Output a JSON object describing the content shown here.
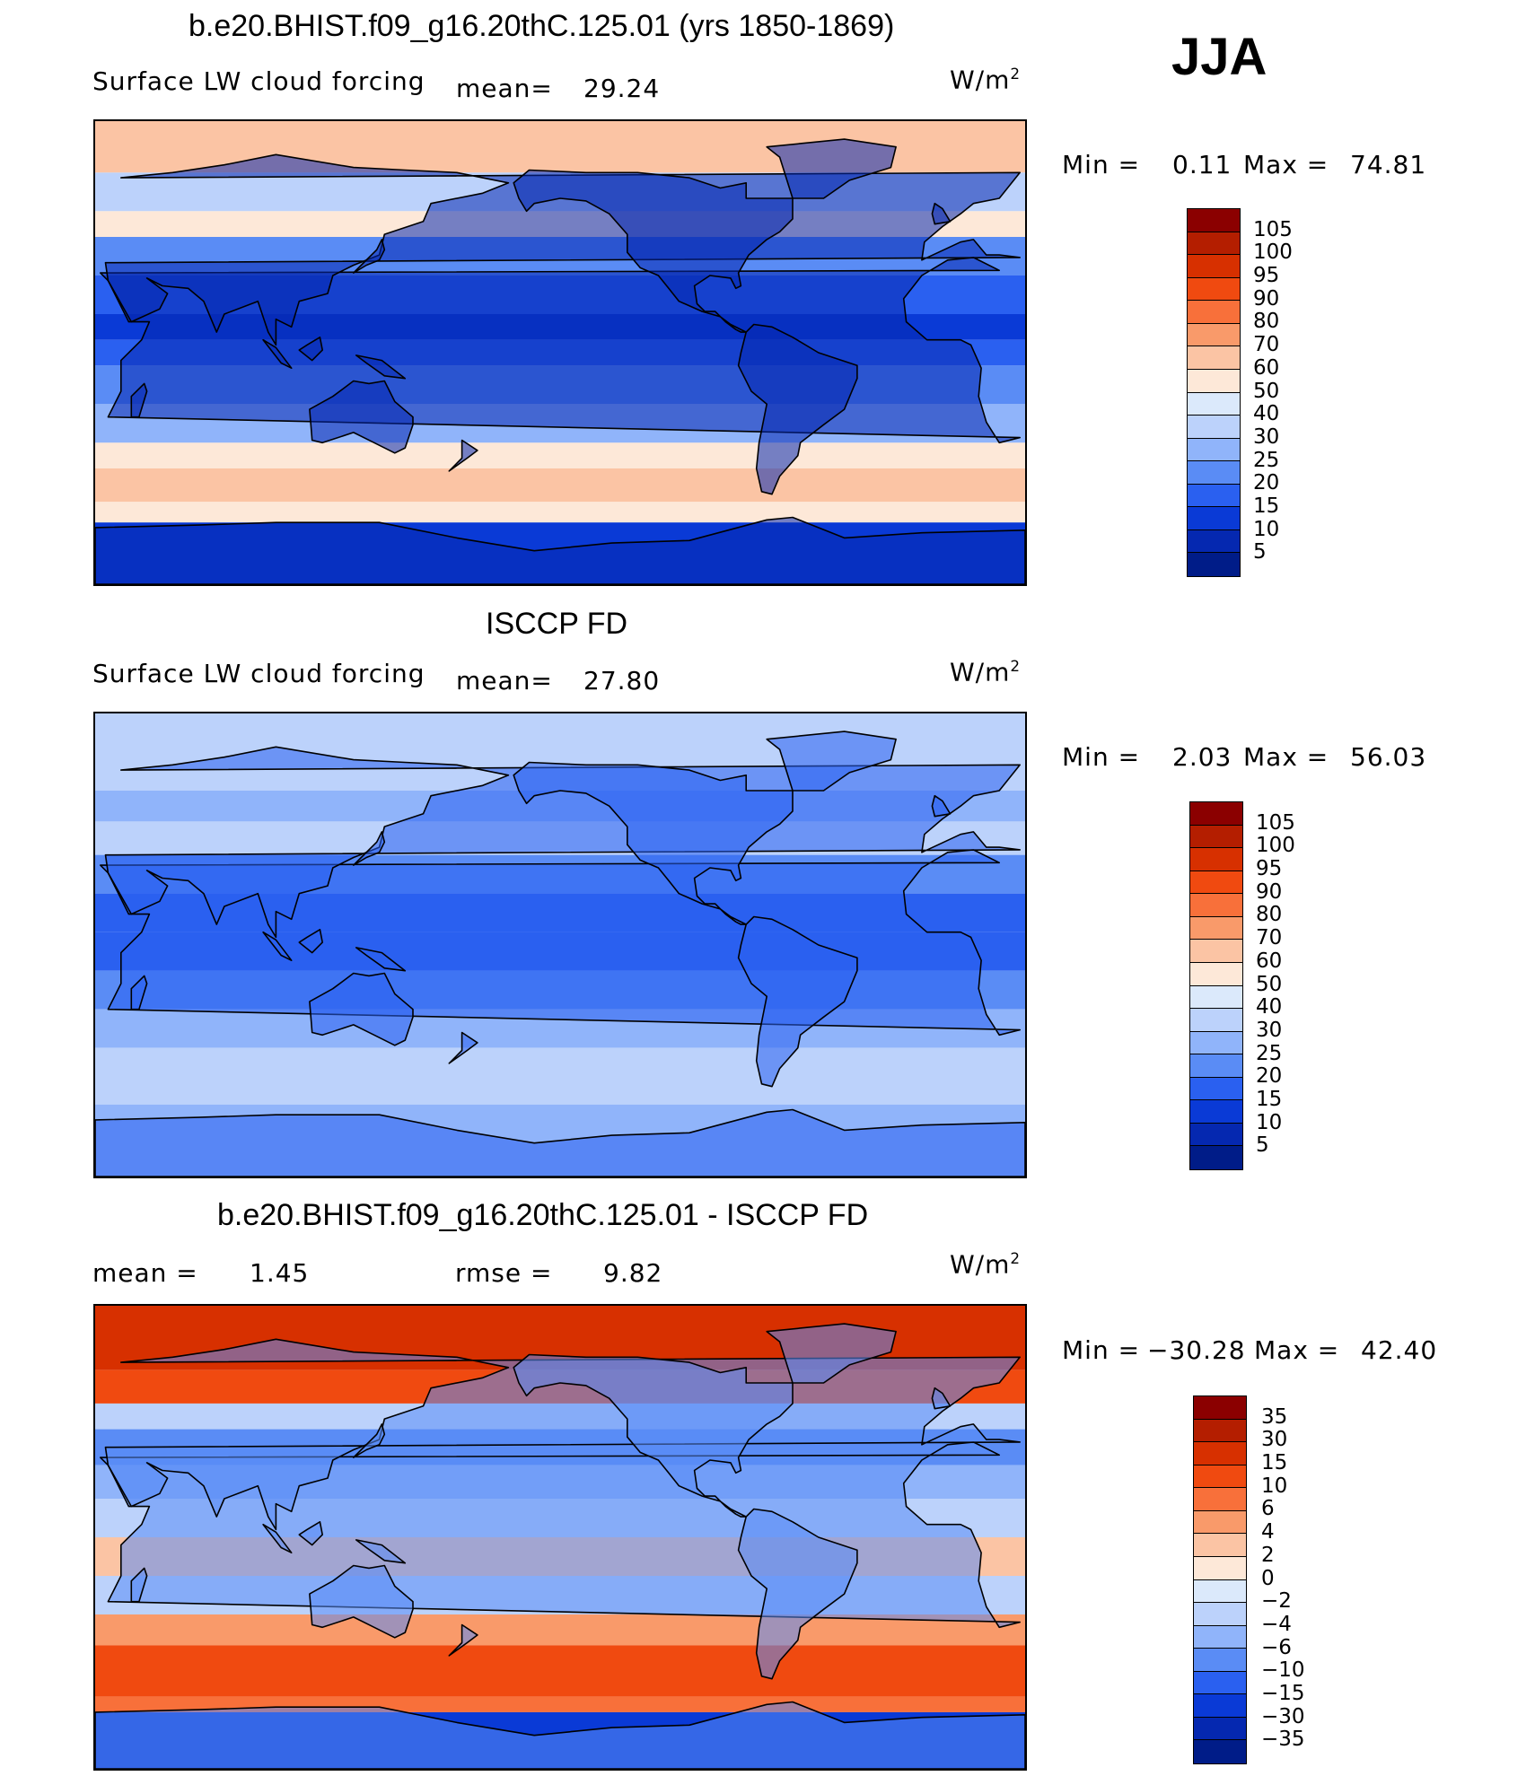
{
  "season": "JJA",
  "units_base": "W/m",
  "units_exp": "2",
  "panels": [
    {
      "title": "b.e20.BHIST.f09_g16.20thC.125.01 (yrs 1850-1869)",
      "variable": "Surface LW cloud forcing",
      "mean_label": "mean=",
      "mean_value": "29.24",
      "min_label": "Min =",
      "min_value": "0.11",
      "max_label": "Max =",
      "max_value": "74.81"
    },
    {
      "title": "ISCCP FD",
      "variable": "Surface LW cloud forcing",
      "mean_label": "mean=",
      "mean_value": "27.80",
      "min_label": "Min =",
      "min_value": "2.03",
      "max_label": "Max =",
      "max_value": "56.03"
    },
    {
      "title": "b.e20.BHIST.f09_g16.20thC.125.01 - ISCCP FD",
      "mean_label": "mean =",
      "mean_value": "1.45",
      "rmse_label": "rmse =",
      "rmse_value": "9.82",
      "min_label": "Min =",
      "min_value": "−30.28",
      "max_label": "Max =",
      "max_value": "42.40"
    }
  ],
  "colorbars": {
    "absolute": {
      "levels": [
        "105",
        "100",
        "95",
        "90",
        "80",
        "70",
        "60",
        "50",
        "40",
        "30",
        "25",
        "20",
        "15",
        "10",
        "5"
      ],
      "colors": [
        "#8b0000",
        "#b41e00",
        "#d73000",
        "#f04a10",
        "#f8703a",
        "#f99a6a",
        "#fbc4a4",
        "#fde8d8",
        "#dbe9fb",
        "#bcd2fb",
        "#90b4fa",
        "#5a8cf5",
        "#2a60f0",
        "#0a3ad6",
        "#0528b0",
        "#001c88"
      ]
    },
    "difference": {
      "levels": [
        "35",
        "30",
        "15",
        "10",
        "6",
        "4",
        "2",
        "0",
        "−2",
        "−4",
        "−6",
        "−10",
        "−15",
        "−30",
        "−35"
      ],
      "colors": [
        "#8b0000",
        "#b41e00",
        "#d73000",
        "#f04a10",
        "#f8703a",
        "#f99a6a",
        "#fbc4a4",
        "#fde8d8",
        "#dbe9fb",
        "#bcd2fb",
        "#90b4fa",
        "#5a8cf5",
        "#2a60f0",
        "#0a3ad6",
        "#0528b0",
        "#001c88"
      ]
    }
  }
}
